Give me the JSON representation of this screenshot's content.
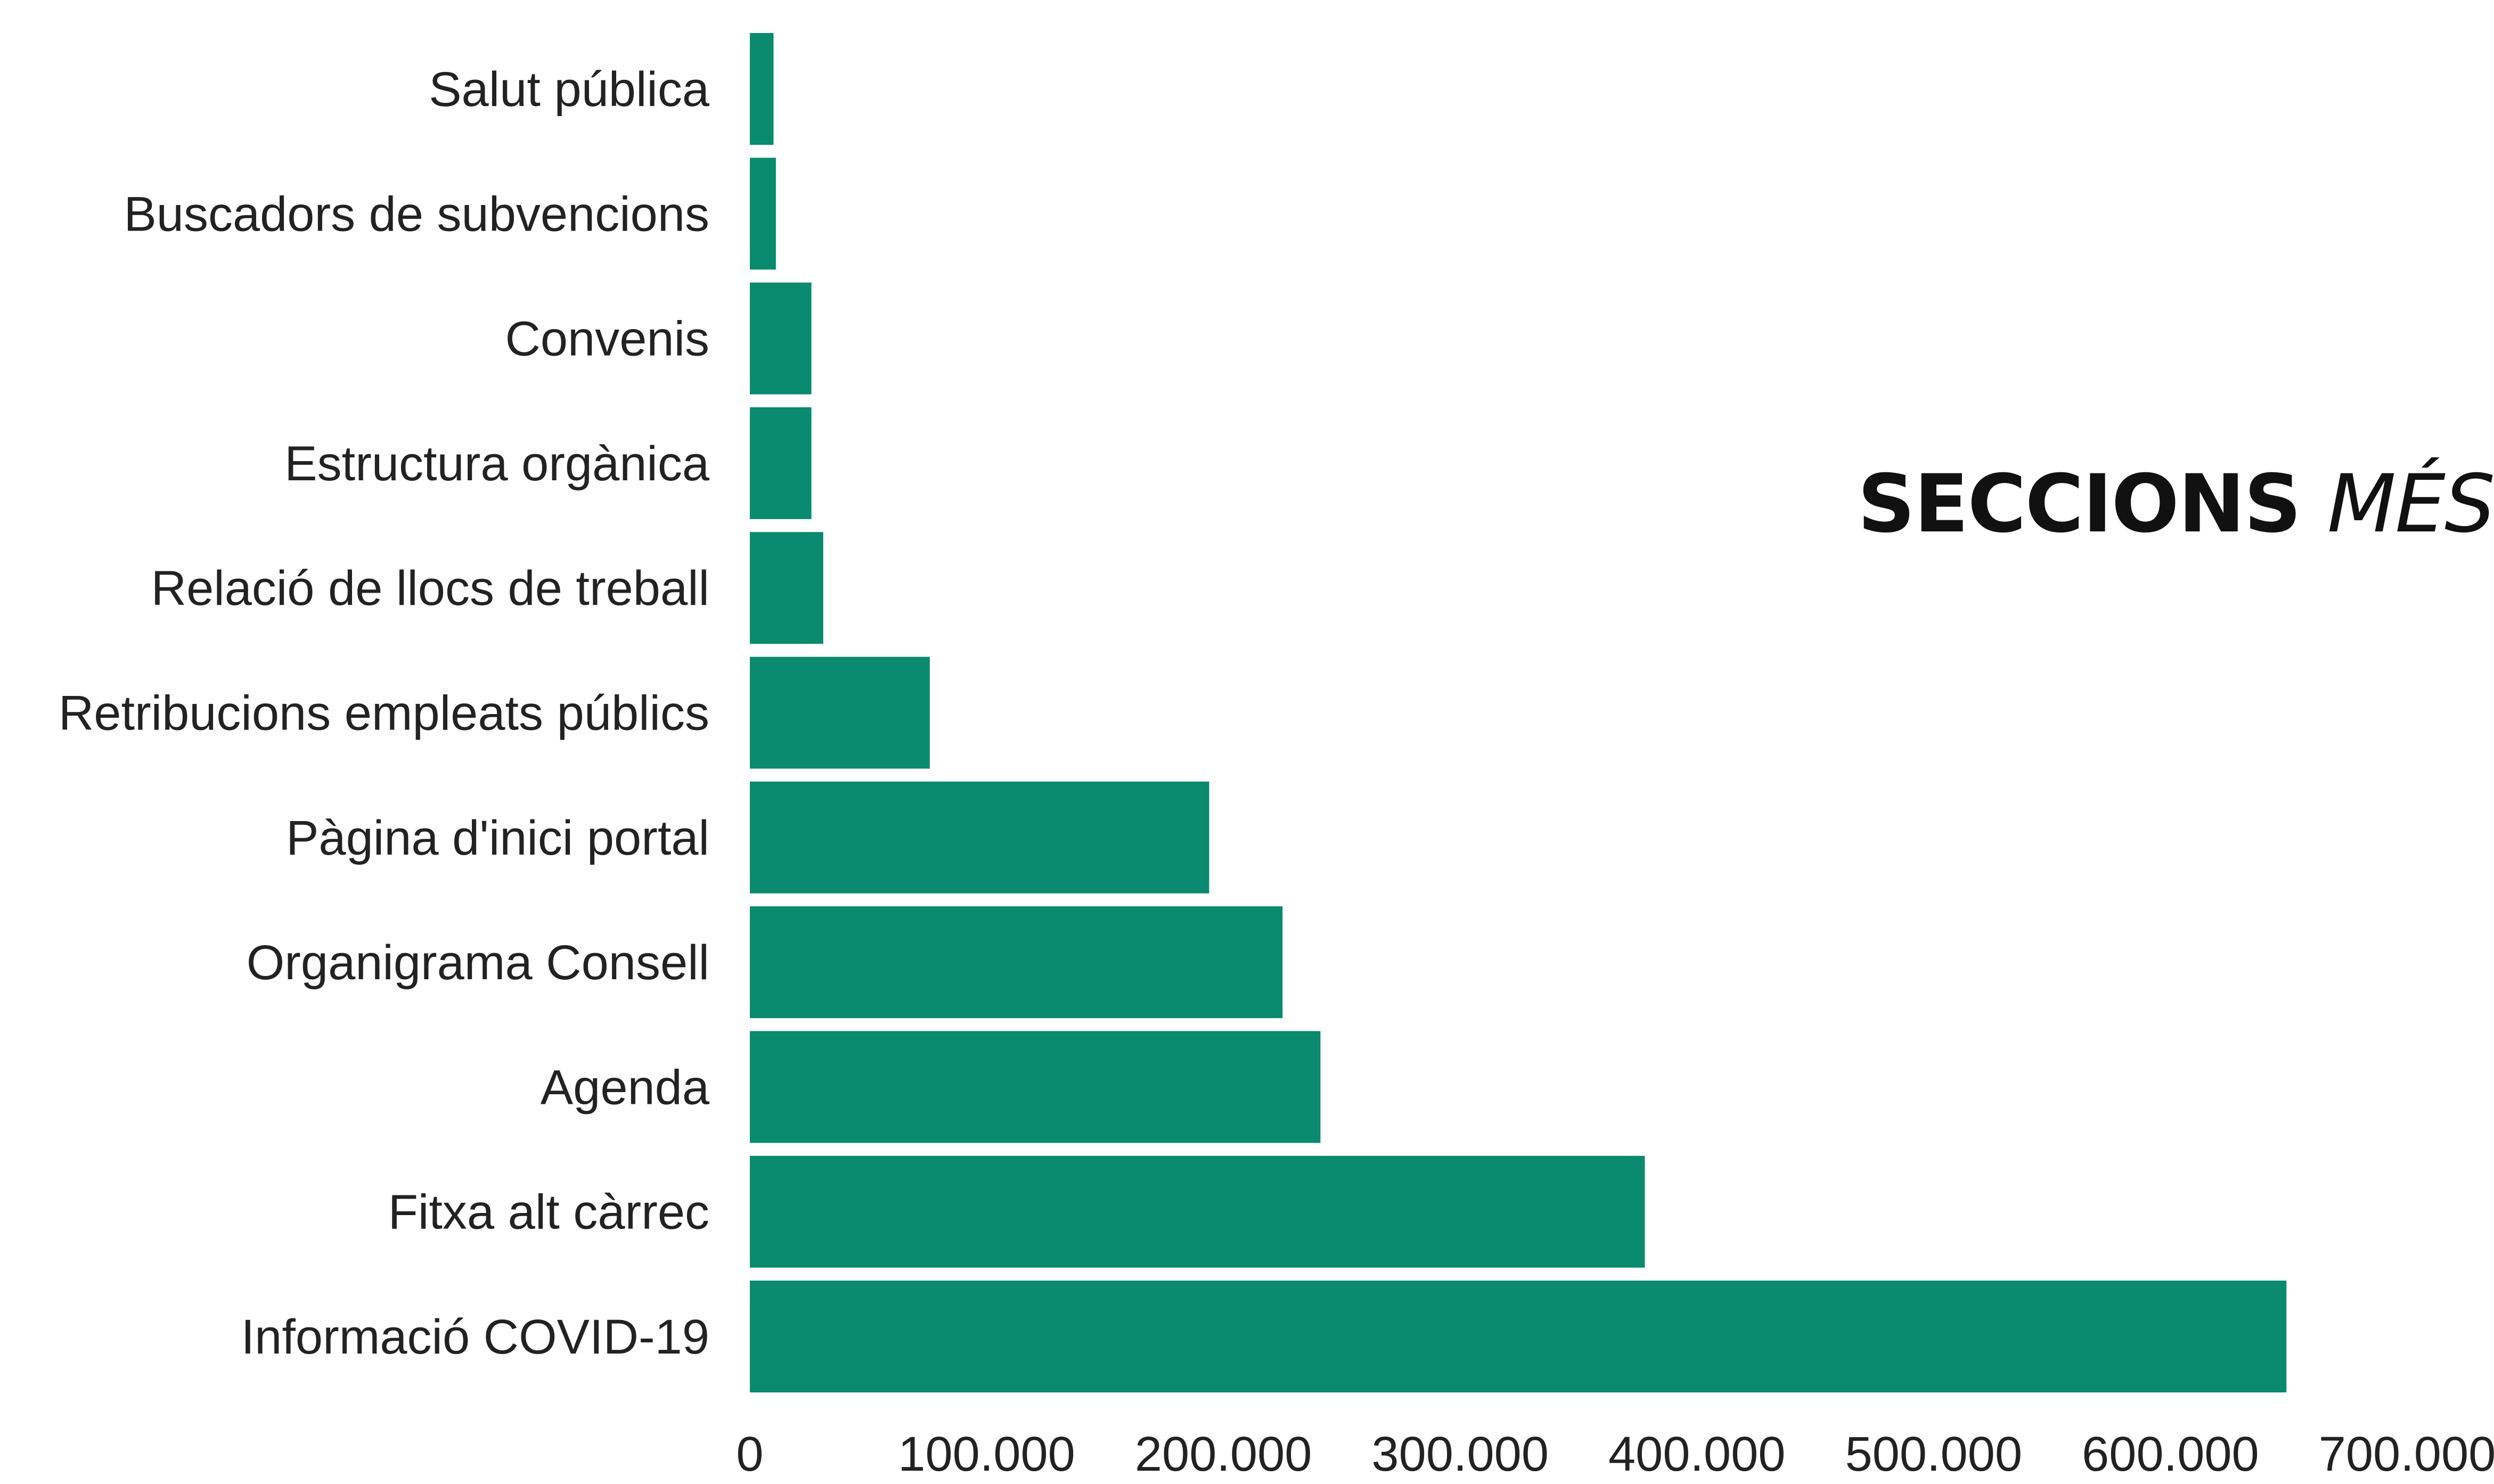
{
  "title": {
    "part1": "SECCIONS",
    "part2": "MÉS"
  },
  "colors": {
    "bar": "#0a8a6e",
    "text": "#222222",
    "background": "#ffffff"
  },
  "chart_data": {
    "type": "bar",
    "orientation": "horizontal",
    "categories": [
      "Salut pública",
      "Buscadors de subvencions",
      "Convenis",
      "Estructura orgànica",
      "Relació de llocs de treball",
      "Retribucions empleats públics",
      "Pàgina d'inici portal",
      "Organigrama Consell",
      "Agenda",
      "Fitxa alt càrrec",
      "Informació COVID-19"
    ],
    "values": [
      10000,
      11000,
      26000,
      26000,
      31000,
      76000,
      194000,
      225000,
      241000,
      378000,
      649000
    ],
    "xlim": [
      0,
      700000
    ],
    "xticks": [
      0,
      100000,
      200000,
      300000,
      400000,
      500000,
      600000,
      700000
    ],
    "xtick_labels": [
      "0",
      "100.000",
      "200.000",
      "300.000",
      "400.000",
      "500.000",
      "600.000",
      "700.000"
    ],
    "grid": false,
    "legend": "none"
  }
}
